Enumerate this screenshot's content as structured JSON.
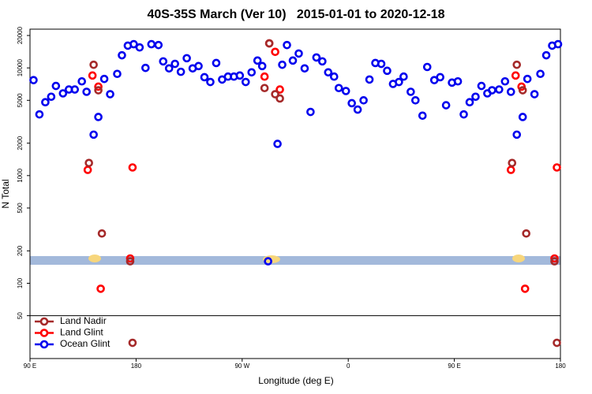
{
  "chart_data": {
    "type": "scatter",
    "title": "40S-35S March (Ver 10)   2015-01-01 to 2020-12-18",
    "x_label": "Longitude (deg E)",
    "y_label": "N Total",
    "log_y": true,
    "legend": "bottom-left",
    "xlim": [
      90,
      540
    ],
    "ylim": [
      20,
      22900
    ],
    "xticks": [
      {
        "value": 90,
        "label": "90 E"
      },
      {
        "value": 180,
        "label": "180"
      },
      {
        "value": 270,
        "label": "90 W"
      },
      {
        "value": 360,
        "label": "0"
      },
      {
        "value": 450,
        "label": "90 E"
      },
      {
        "value": 540,
        "label": "180"
      }
    ],
    "yticks": [
      50,
      100,
      200,
      500,
      1000,
      2000,
      5000,
      10000,
      20000
    ],
    "series": [
      {
        "name": "Land Nadir",
        "color": "#a52a2a",
        "x": [
          144,
          140,
          148,
          151,
          175,
          177,
          293,
          289,
          298,
          302,
          503,
          499,
          508,
          511,
          535,
          537
        ],
        "values": [
          10700,
          1310,
          6200,
          290,
          160,
          28,
          16900,
          6500,
          5700,
          5200,
          10700,
          1310,
          6200,
          290,
          160,
          28
        ]
      },
      {
        "name": "Land Glint",
        "color": "#ff0000",
        "x": [
          143,
          139,
          148,
          150,
          175,
          177,
          293,
          289,
          298,
          302,
          502,
          498,
          507,
          510,
          535,
          537
        ],
        "values": [
          8500,
          1130,
          6700,
          89,
          170,
          1190,
          16900,
          8300,
          14100,
          6300,
          8500,
          1130,
          6700,
          89,
          170,
          1190
        ]
      },
      {
        "name": "Ocean Glint",
        "color": "#0000ee",
        "x": [
          93,
          98,
          103,
          108,
          112,
          118,
          123,
          128,
          134,
          138,
          144,
          148,
          153,
          158,
          164,
          168,
          173,
          178,
          183,
          188,
          193,
          199,
          203,
          208,
          213,
          218,
          223,
          228,
          233,
          238,
          243,
          248,
          253,
          258,
          263,
          268,
          273,
          278,
          283,
          287,
          292,
          300,
          304,
          308,
          313,
          318,
          323,
          328,
          333,
          338,
          343,
          348,
          352,
          358,
          363,
          368,
          373,
          378,
          383,
          388,
          393,
          398,
          403,
          407,
          413,
          417,
          423,
          427,
          433,
          438,
          443,
          448,
          453,
          458,
          463,
          468,
          473,
          478,
          482,
          488,
          493,
          498,
          503,
          508,
          512,
          518,
          523,
          528,
          533,
          538
        ],
        "values": [
          7700,
          3700,
          4800,
          5400,
          6800,
          5800,
          6300,
          6300,
          7500,
          6000,
          2400,
          3500,
          7900,
          5700,
          8800,
          13100,
          16100,
          16600,
          15500,
          10000,
          16600,
          16300,
          11500,
          9900,
          10900,
          9200,
          12300,
          9900,
          10400,
          8200,
          7400,
          11100,
          7800,
          8300,
          8300,
          8500,
          7400,
          9100,
          11700,
          10400,
          160,
          1970,
          10700,
          16300,
          11700,
          13600,
          9900,
          3900,
          12500,
          11500,
          9100,
          8300,
          6500,
          6100,
          4700,
          4100,
          5000,
          7800,
          11100,
          10900,
          9400,
          7100,
          7400,
          8300,
          6000,
          5000,
          3600,
          10200,
          7700,
          8200,
          4500,
          7300,
          7500,
          3700,
          4800,
          5400,
          6800,
          5800,
          6200,
          6300,
          7500,
          6000,
          2400,
          3500,
          7900,
          5700,
          8800,
          13100,
          16100,
          16600
        ]
      }
    ]
  }
}
